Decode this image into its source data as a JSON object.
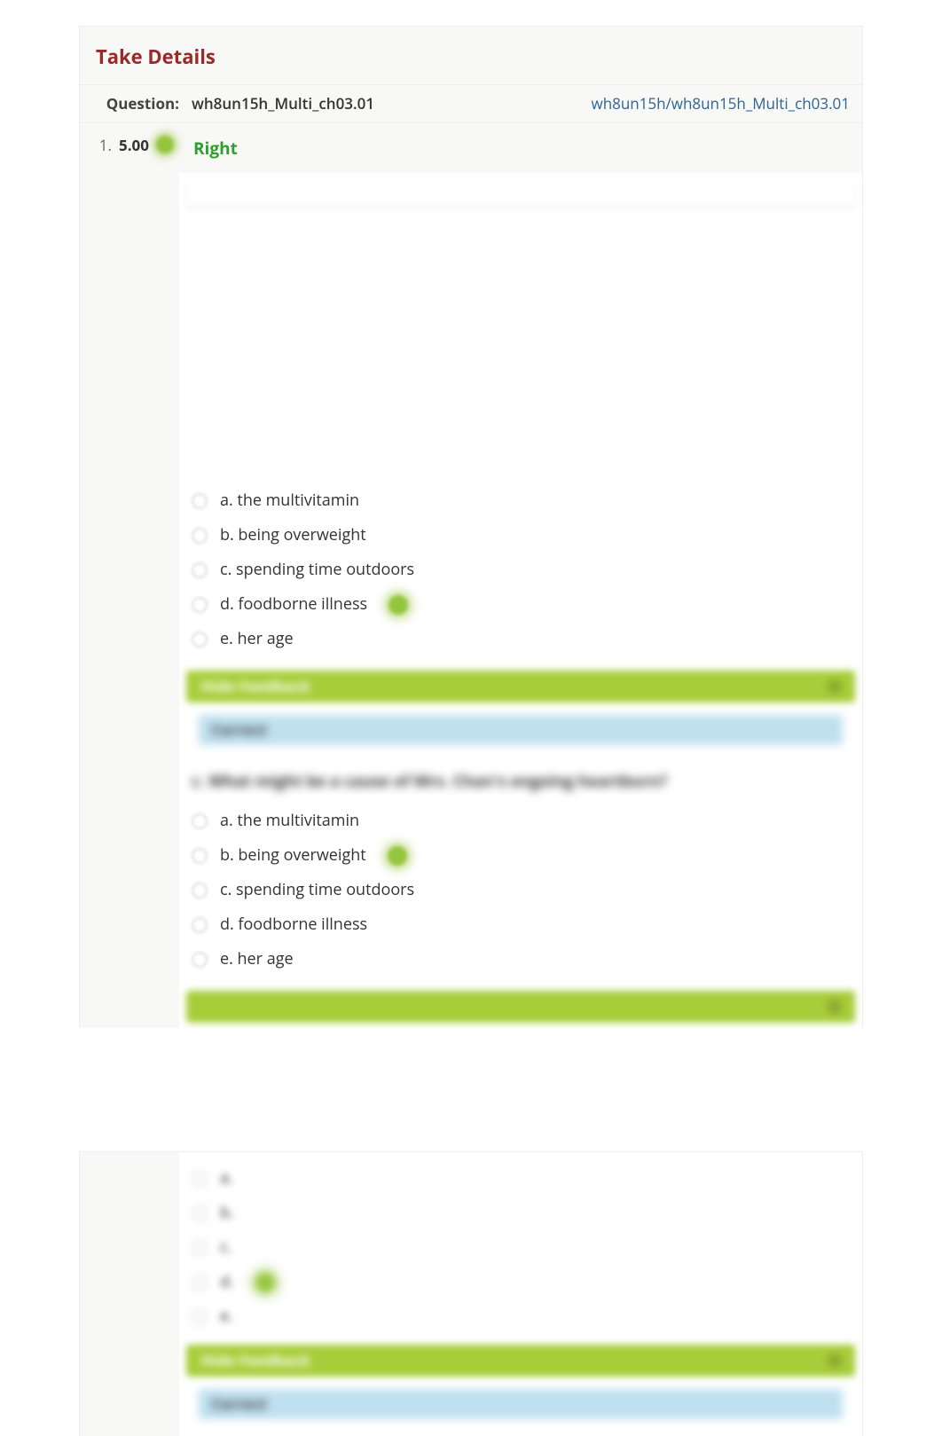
{
  "header": {
    "title": "Take Details"
  },
  "question": {
    "label": "Question:",
    "name": "wh8un15h_Multi_ch03.01",
    "link_text": "wh8un15h/wh8un15h_Multi_ch03.01",
    "link_href": "#"
  },
  "score": {
    "index": "1.",
    "value": "5.00"
  },
  "result": {
    "text": "Right",
    "status": "right",
    "color": "#2e9e2e"
  },
  "colors": {
    "brand_red": "#9a2929",
    "panel_bg": "#f8f8f6",
    "green_dot": "#95c53d",
    "feedback_bar": "#a7cd39",
    "feedback_content": "#bfe0ef",
    "link": "#2a6496"
  },
  "choices_set1": [
    {
      "letter": "a.",
      "text": "the multivitamin",
      "marked": false
    },
    {
      "letter": "b.",
      "text": "being overweight",
      "marked": false
    },
    {
      "letter": "c.",
      "text": "spending time outdoors",
      "marked": false
    },
    {
      "letter": "d.",
      "text": "foodborne illness",
      "marked": true
    },
    {
      "letter": "e.",
      "text": "her age",
      "marked": false
    }
  ],
  "feedback1": {
    "bar_label": "Hide Feedback",
    "content_label": "Correct"
  },
  "sub_question_blur": "c. What might be a cause of Mrs. Chan's ongoing heartburn?",
  "choices_set2": [
    {
      "letter": "a.",
      "text": "the multivitamin",
      "marked": false
    },
    {
      "letter": "b.",
      "text": "being overweight",
      "marked": true
    },
    {
      "letter": "c.",
      "text": "spending time outdoors",
      "marked": false
    },
    {
      "letter": "d.",
      "text": "foodborne illness",
      "marked": false
    },
    {
      "letter": "e.",
      "text": "her age",
      "marked": false
    }
  ],
  "choices_set3": [
    {
      "letter": "a.",
      "text": " ",
      "marked": false
    },
    {
      "letter": "b.",
      "text": " ",
      "marked": false
    },
    {
      "letter": "c.",
      "text": " ",
      "marked": false
    },
    {
      "letter": "d.",
      "text": " ",
      "marked": true
    },
    {
      "letter": "e.",
      "text": " ",
      "marked": false
    }
  ],
  "feedback3": {
    "bar_label": "Hide Feedback",
    "content_label": "Correct"
  }
}
